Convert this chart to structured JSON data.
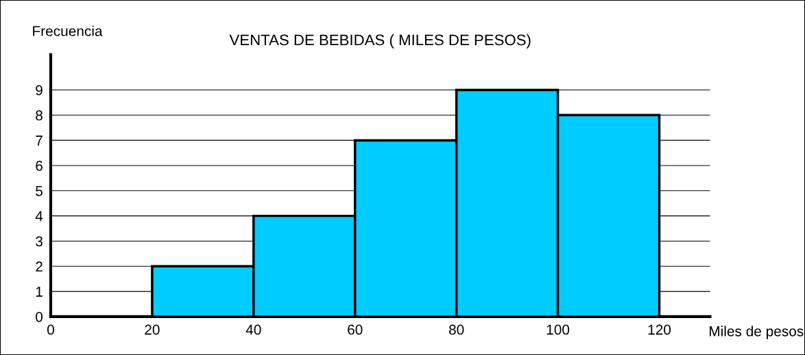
{
  "chart_data": {
    "type": "histogram",
    "title": "VENTAS DE BEBIDAS ( MILES DE PESOS)",
    "xlabel": "Miles de pesos",
    "ylabel": "Frecuencia",
    "bins": [
      20,
      40,
      60,
      80,
      100,
      120
    ],
    "values": [
      2,
      4,
      7,
      9,
      8
    ],
    "color": "#00ccff",
    "xlim": [
      0,
      130
    ],
    "xticks": [
      0,
      20,
      40,
      60,
      80,
      100,
      120
    ],
    "ylim": [
      0,
      10.4
    ],
    "yticks": [
      0,
      1,
      2,
      3,
      4,
      5,
      6,
      7,
      8,
      9
    ],
    "grid": "y",
    "legend": false
  }
}
